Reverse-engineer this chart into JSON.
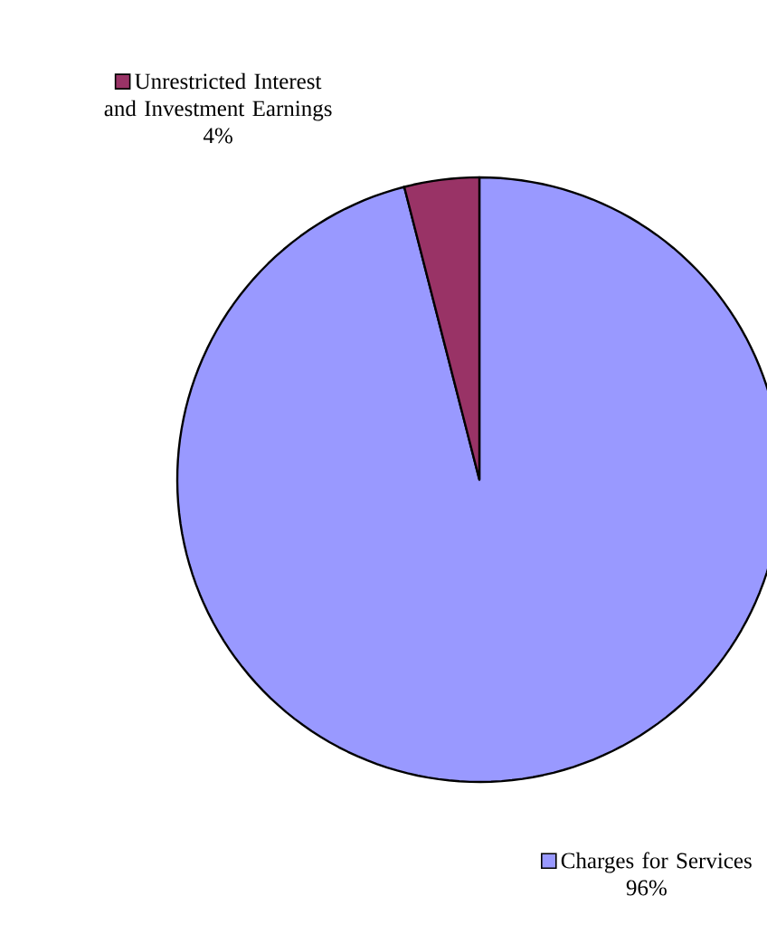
{
  "chart_data": {
    "type": "pie",
    "categories": [
      "Charges for Services",
      "Unrestricted Interest and Investment Earnings"
    ],
    "values": [
      96,
      4
    ],
    "colors": [
      "#9999ff",
      "#993366"
    ],
    "value_labels": [
      "96%",
      "4%"
    ],
    "legend": "top left"
  }
}
